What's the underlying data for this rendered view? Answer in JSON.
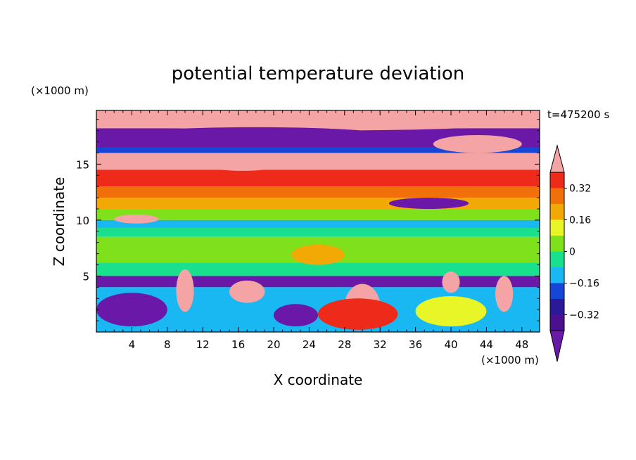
{
  "chart_data": {
    "type": "heatmap",
    "title": "potential temperature deviation",
    "xlabel": "X coordinate",
    "ylabel": "Z coordinate",
    "x_unit": "(×1000 m)",
    "y_unit": "(×1000 m)",
    "time_label": "t=475200 s",
    "xlim": [
      0,
      50
    ],
    "ylim": [
      0,
      19.8
    ],
    "x_ticks": [
      4,
      8,
      12,
      16,
      20,
      24,
      28,
      32,
      36,
      40,
      44,
      48
    ],
    "y_ticks": [
      5,
      10,
      15
    ],
    "colorbar": {
      "levels": [
        -0.4,
        -0.32,
        -0.24,
        -0.16,
        -0.08,
        0,
        0.08,
        0.16,
        0.24,
        0.32,
        0.4
      ],
      "tick_values": [
        0.32,
        0.16,
        0,
        -0.16,
        -0.32
      ],
      "tick_labels": [
        "0.32",
        "0.16",
        "0",
        "−0.16",
        "−0.32"
      ],
      "colors": [
        "#4a1090",
        "#2a1a9a",
        "#1646d6",
        "#19b8f2",
        "#18e08c",
        "#7fe01c",
        "#e8f526",
        "#f2a805",
        "#f2700a",
        "#ee2a1a"
      ],
      "under_color": "#6a18a8",
      "over_color": "#f4a4a4"
    },
    "layers": [
      {
        "z": [
          18.2,
          19.8
        ],
        "value": 0.45
      },
      {
        "z": [
          16.5,
          18.2
        ],
        "value": -0.45
      },
      {
        "z": [
          16.0,
          16.5
        ],
        "value": -0.2
      },
      {
        "z": [
          14.5,
          16.0
        ],
        "value": 0.45
      },
      {
        "z": [
          13.0,
          14.5
        ],
        "value": 0.36
      },
      {
        "z": [
          12.0,
          13.0
        ],
        "value": 0.28
      },
      {
        "z": [
          11.0,
          12.0
        ],
        "value": 0.2
      },
      {
        "z": [
          10.0,
          11.0
        ],
        "value": 0.04
      },
      {
        "z": [
          9.3,
          10.0
        ],
        "value": -0.1
      },
      {
        "z": [
          8.5,
          9.3
        ],
        "value": -0.04
      },
      {
        "z": [
          6.2,
          8.5
        ],
        "value": 0.04
      },
      {
        "z": [
          5.0,
          6.2
        ],
        "value": -0.04
      },
      {
        "z": [
          4.0,
          5.0
        ],
        "value": -0.45
      },
      {
        "z": [
          0,
          4.0
        ],
        "value": -0.1
      }
    ],
    "features": [
      {
        "x": [
          0,
          50
        ],
        "z": [
          18.0,
          19.8
        ],
        "value": 0.45
      },
      {
        "x": [
          3,
          33
        ],
        "z": [
          16.8,
          18.3
        ],
        "value": -0.45
      },
      {
        "x": [
          38,
          48
        ],
        "z": [
          16.0,
          17.6
        ],
        "value": 0.45
      },
      {
        "x": [
          12,
          21
        ],
        "z": [
          14.4,
          15.6
        ],
        "value": 0.45
      },
      {
        "x": [
          33,
          42
        ],
        "z": [
          11.0,
          12.0
        ],
        "value": -0.45
      },
      {
        "x": [
          2,
          7
        ],
        "z": [
          9.7,
          10.5
        ],
        "value": 0.45
      },
      {
        "x": [
          22,
          28
        ],
        "z": [
          6.0,
          7.8
        ],
        "value": 0.2
      },
      {
        "x": [
          28,
          32
        ],
        "z": [
          0.3,
          4.3
        ],
        "value": 0.45
      },
      {
        "x": [
          25,
          34
        ],
        "z": [
          0.2,
          3.0
        ],
        "value": 0.36
      },
      {
        "x": [
          15,
          19
        ],
        "z": [
          2.6,
          4.6
        ],
        "value": 0.45
      },
      {
        "x": [
          9,
          11
        ],
        "z": [
          1.8,
          5.6
        ],
        "value": 0.45
      },
      {
        "x": [
          39,
          41
        ],
        "z": [
          3.5,
          5.4
        ],
        "value": 0.45
      },
      {
        "x": [
          45,
          47
        ],
        "z": [
          1.8,
          5.0
        ],
        "value": 0.45
      },
      {
        "x": [
          0,
          8
        ],
        "z": [
          0.5,
          3.5
        ],
        "value": -0.45
      },
      {
        "x": [
          36,
          44
        ],
        "z": [
          0.5,
          3.2
        ],
        "value": 0.12
      },
      {
        "x": [
          20,
          25
        ],
        "z": [
          0.5,
          2.5
        ],
        "value": -0.45
      }
    ]
  }
}
